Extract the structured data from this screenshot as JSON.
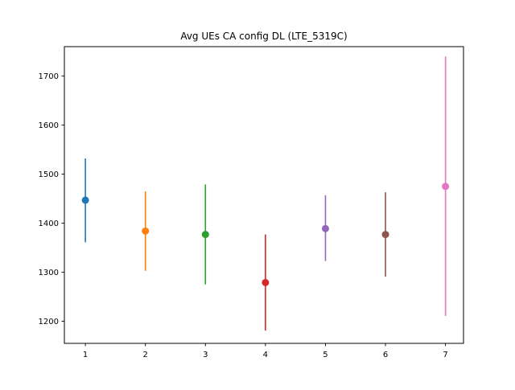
{
  "chart_data": {
    "type": "scatter",
    "subtype": "errorbar",
    "title": "Avg UEs CA config DL (LTE_5319C)",
    "xlabel": "",
    "ylabel": "",
    "xlim": [
      0.65,
      7.3
    ],
    "ylim": [
      1155,
      1760
    ],
    "xticks": [
      1,
      2,
      3,
      4,
      5,
      6,
      7
    ],
    "yticks": [
      1200,
      1300,
      1400,
      1500,
      1600,
      1700
    ],
    "grid": false,
    "legend": "none",
    "points": [
      {
        "x": 1,
        "y": 1447,
        "low": 1361,
        "high": 1532,
        "color": "#1f77b4"
      },
      {
        "x": 2,
        "y": 1384,
        "low": 1303,
        "high": 1465,
        "color": "#ff7f0e"
      },
      {
        "x": 3,
        "y": 1377,
        "low": 1275,
        "high": 1479,
        "color": "#2ca02c"
      },
      {
        "x": 4,
        "y": 1279,
        "low": 1181,
        "high": 1377,
        "color": "#d62728"
      },
      {
        "x": 5,
        "y": 1389,
        "low": 1323,
        "high": 1457,
        "color": "#9467bd"
      },
      {
        "x": 6,
        "y": 1377,
        "low": 1291,
        "high": 1463,
        "color": "#8c564b"
      },
      {
        "x": 7,
        "y": 1475,
        "low": 1211,
        "high": 1740,
        "color": "#e377c2"
      }
    ]
  }
}
